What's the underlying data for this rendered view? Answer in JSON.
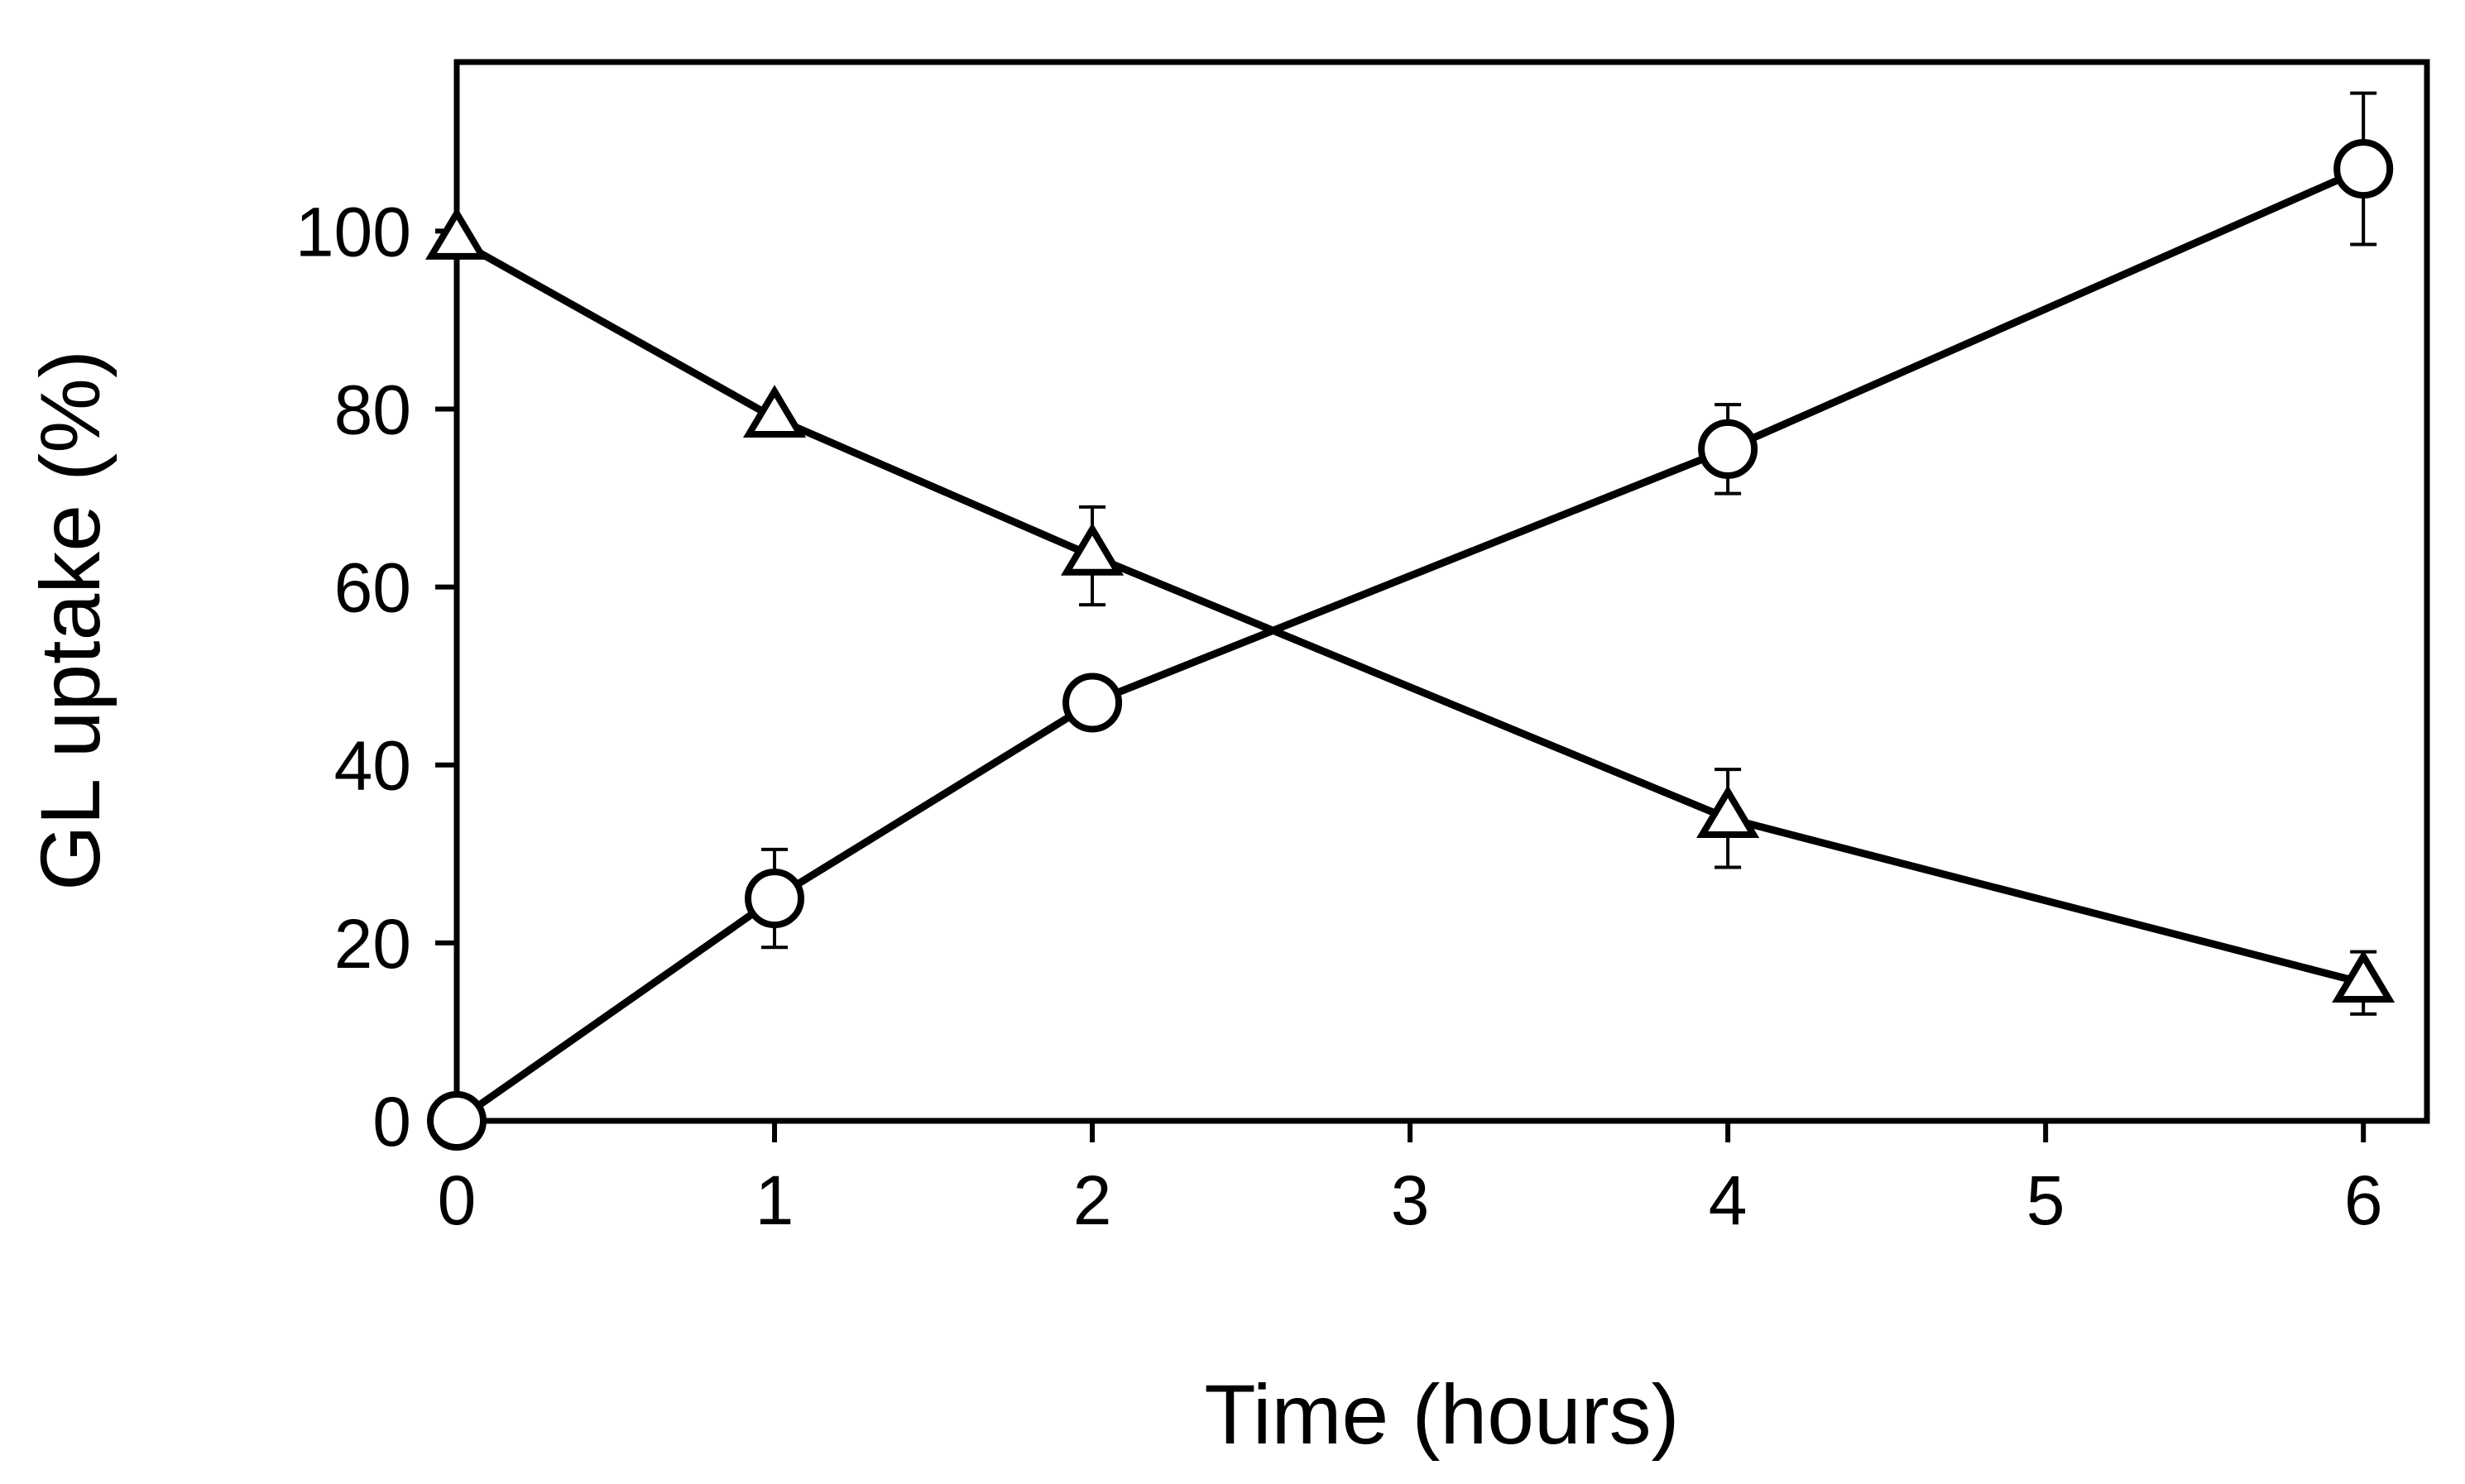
{
  "chart_data": {
    "type": "line",
    "xlabel": "Time (hours)",
    "ylabel": "GL uptake (%)",
    "xlim": [
      0,
      6.2
    ],
    "ylim": [
      0,
      119
    ],
    "xticks": [
      0,
      1,
      2,
      3,
      4,
      5,
      6
    ],
    "yticks": [
      0,
      20,
      40,
      60,
      80,
      100
    ],
    "grid": false,
    "legend": "none",
    "series": [
      {
        "marker": "circle",
        "color": "#000000",
        "x": [
          0,
          1,
          2,
          4,
          6
        ],
        "y": [
          0,
          25,
          47,
          75.5,
          107
        ],
        "err": [
          0,
          5.5,
          0,
          5,
          8.5
        ]
      },
      {
        "marker": "triangle",
        "color": "#000000",
        "x": [
          0,
          1,
          2,
          4,
          6
        ],
        "y": [
          99,
          79,
          63.5,
          34,
          15.5
        ],
        "err": [
          0,
          0,
          5.5,
          5.5,
          3.5
        ]
      }
    ]
  }
}
